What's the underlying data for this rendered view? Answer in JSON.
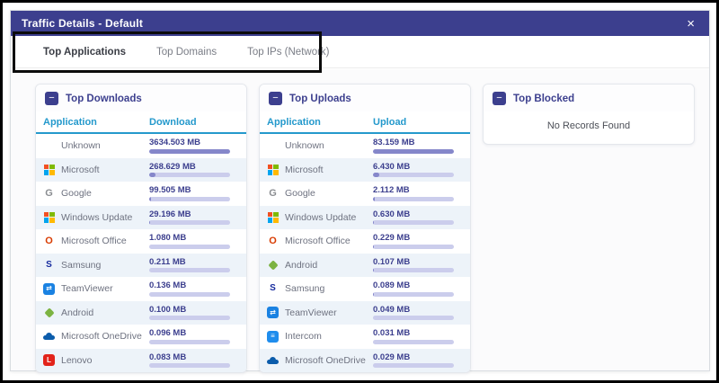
{
  "dialog": {
    "title": "Traffic Details - Default",
    "close_label": "×"
  },
  "tabs": [
    {
      "label": "Top Applications",
      "active": true
    },
    {
      "label": "Top Domains",
      "active": false
    },
    {
      "label": "Top IPs (Network)",
      "active": false
    }
  ],
  "colors": {
    "accent": "#3c3f8e",
    "cyan": "#2499cc",
    "bar_fill": "#8587ca",
    "bar_track": "#cbcdec",
    "row_alt": "#edf3f9",
    "header_bg": "#3c3f8e"
  },
  "panels": [
    {
      "title": "Top Downloads",
      "columns": [
        "Application",
        "Download"
      ],
      "rows": [
        {
          "name": "Unknown",
          "icon": "none",
          "value": "3634.503 MB",
          "num": 3634.503
        },
        {
          "name": "Microsoft",
          "icon": "microsoft",
          "value": "268.629 MB",
          "num": 268.629
        },
        {
          "name": "Google",
          "icon": "google",
          "value": "99.505 MB",
          "num": 99.505
        },
        {
          "name": "Windows Update",
          "icon": "windows",
          "value": "29.196 MB",
          "num": 29.196
        },
        {
          "name": "Microsoft Office",
          "icon": "office",
          "value": "1.080 MB",
          "num": 1.08
        },
        {
          "name": "Samsung",
          "icon": "samsung",
          "value": "0.211 MB",
          "num": 0.211
        },
        {
          "name": "TeamViewer",
          "icon": "teamviewer",
          "value": "0.136 MB",
          "num": 0.136
        },
        {
          "name": "Android",
          "icon": "android",
          "value": "0.100 MB",
          "num": 0.1
        },
        {
          "name": "Microsoft OneDrive",
          "icon": "onedrive",
          "value": "0.096 MB",
          "num": 0.096
        },
        {
          "name": "Lenovo",
          "icon": "lenovo",
          "value": "0.083 MB",
          "num": 0.083
        }
      ]
    },
    {
      "title": "Top Uploads",
      "columns": [
        "Application",
        "Upload"
      ],
      "rows": [
        {
          "name": "Unknown",
          "icon": "none",
          "value": "83.159 MB",
          "num": 83.159
        },
        {
          "name": "Microsoft",
          "icon": "microsoft",
          "value": "6.430 MB",
          "num": 6.43
        },
        {
          "name": "Google",
          "icon": "google",
          "value": "2.112 MB",
          "num": 2.112
        },
        {
          "name": "Windows Update",
          "icon": "windows",
          "value": "0.630 MB",
          "num": 0.63
        },
        {
          "name": "Microsoft Office",
          "icon": "office",
          "value": "0.229 MB",
          "num": 0.229
        },
        {
          "name": "Android",
          "icon": "android",
          "value": "0.107 MB",
          "num": 0.107
        },
        {
          "name": "Samsung",
          "icon": "samsung",
          "value": "0.089 MB",
          "num": 0.089
        },
        {
          "name": "TeamViewer",
          "icon": "teamviewer",
          "value": "0.049 MB",
          "num": 0.049
        },
        {
          "name": "Intercom",
          "icon": "intercom",
          "value": "0.031 MB",
          "num": 0.031
        },
        {
          "name": "Microsoft OneDrive",
          "icon": "onedrive",
          "value": "0.029 MB",
          "num": 0.029
        }
      ]
    },
    {
      "title": "Top Blocked",
      "columns": [],
      "rows": [],
      "empty_text": "No Records Found"
    }
  ]
}
